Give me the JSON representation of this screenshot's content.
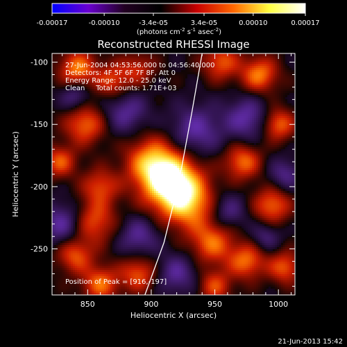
{
  "chart_data": {
    "type": "heatmap",
    "title": "Reconstructed RHESSI Image",
    "xlabel": "Heliocentric X (arcsec)",
    "ylabel": "Heliocentric Y (arcsec)",
    "xlim": [
      822,
      1013
    ],
    "ylim": [
      -287,
      -93
    ],
    "x_ticks": [
      850,
      900,
      950,
      1000
    ],
    "x_tick_labels": [
      "850",
      "900",
      "950",
      "1000"
    ],
    "y_ticks": [
      -100,
      -150,
      -200,
      -250
    ],
    "y_tick_labels": [
      "-100",
      "-150",
      "-200",
      "-250"
    ],
    "colorbar": {
      "range": [
        -0.00017,
        0.00017
      ],
      "ticks": [
        -0.00017,
        -0.0001,
        -3.4e-05,
        3.4e-05,
        0.0001,
        0.00017
      ],
      "tick_labels": [
        "-0.00017",
        "-0.00010",
        "-3.4e-05",
        "3.4e-05",
        "0.00010",
        "0.00017"
      ],
      "unit_label": "(photons cm",
      "unit_exp1": "-2",
      "unit_mid": " s",
      "unit_exp2": "-1",
      "unit_end": " asec",
      "unit_exp3": "-2",
      "unit_close": ")",
      "colors": [
        "#0000ff",
        "#6a00d0",
        "#220022",
        "#000000",
        "#c80000",
        "#ff6600",
        "#ffff40",
        "#ffffff"
      ]
    },
    "annotations": [
      "27-Jun-2004 04:53:56.000 to 04:56:40.000",
      "Detectors: 4F 5F 6F 7F 8F, Att 0",
      "Energy Range: 12.0 - 25.0 keV",
      "Clean     Total counts: 1.71E+03"
    ],
    "peak_label": "Position of Peak = [916,-197]",
    "peak": [
      916,
      -197
    ],
    "limb_points": [
      [
        940,
        -93
      ],
      [
        932,
        -140
      ],
      [
        922,
        -195
      ],
      [
        910,
        -245
      ],
      [
        895,
        -287
      ]
    ],
    "blobs": [
      {
        "x": 916,
        "y": -197,
        "v": 1.0,
        "s": 16
      },
      {
        "x": 900,
        "y": -180,
        "v": 0.6,
        "s": 14
      },
      {
        "x": 930,
        "y": -215,
        "v": 0.55,
        "s": 14
      },
      {
        "x": 842,
        "y": -105,
        "v": 0.6,
        "s": 10
      },
      {
        "x": 870,
        "y": -115,
        "v": 0.45,
        "s": 10
      },
      {
        "x": 848,
        "y": -150,
        "v": 0.55,
        "s": 11
      },
      {
        "x": 828,
        "y": -180,
        "v": 0.5,
        "s": 9
      },
      {
        "x": 860,
        "y": -200,
        "v": 0.45,
        "s": 10
      },
      {
        "x": 855,
        "y": -228,
        "v": 0.5,
        "s": 12
      },
      {
        "x": 840,
        "y": -255,
        "v": 0.5,
        "s": 10
      },
      {
        "x": 860,
        "y": -278,
        "v": 0.55,
        "s": 10
      },
      {
        "x": 890,
        "y": -270,
        "v": 0.5,
        "s": 10
      },
      {
        "x": 955,
        "y": -100,
        "v": 0.5,
        "s": 10
      },
      {
        "x": 985,
        "y": -110,
        "v": 0.6,
        "s": 10
      },
      {
        "x": 1000,
        "y": -150,
        "v": 0.55,
        "s": 9
      },
      {
        "x": 972,
        "y": -180,
        "v": 0.55,
        "s": 10
      },
      {
        "x": 995,
        "y": -215,
        "v": 0.55,
        "s": 10
      },
      {
        "x": 948,
        "y": -245,
        "v": 0.55,
        "s": 12
      },
      {
        "x": 975,
        "y": -260,
        "v": 0.55,
        "s": 10
      },
      {
        "x": 1005,
        "y": -265,
        "v": 0.5,
        "s": 9
      },
      {
        "x": 950,
        "y": -280,
        "v": 0.45,
        "s": 9
      },
      {
        "x": 890,
        "y": -105,
        "v": 0.35,
        "s": 9
      },
      {
        "x": 935,
        "y": -155,
        "v": -0.45,
        "s": 14
      },
      {
        "x": 880,
        "y": -140,
        "v": -0.4,
        "s": 12
      },
      {
        "x": 975,
        "y": -145,
        "v": -0.45,
        "s": 12
      },
      {
        "x": 830,
        "y": -230,
        "v": -0.45,
        "s": 12
      },
      {
        "x": 960,
        "y": -220,
        "v": -0.35,
        "s": 10
      },
      {
        "x": 890,
        "y": -240,
        "v": -0.4,
        "s": 11
      },
      {
        "x": 920,
        "y": -270,
        "v": -0.4,
        "s": 11
      },
      {
        "x": 1005,
        "y": -190,
        "v": -0.35,
        "s": 9
      },
      {
        "x": 840,
        "y": -128,
        "v": -0.35,
        "s": 8
      },
      {
        "x": 990,
        "y": -240,
        "v": -0.3,
        "s": 8
      }
    ]
  },
  "footer_date": "21-Jun-2013 15:42"
}
